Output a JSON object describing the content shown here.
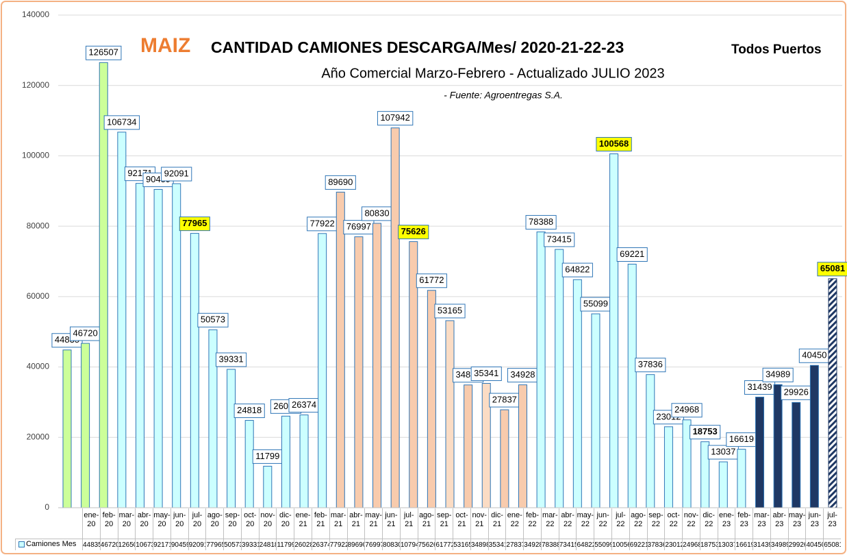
{
  "chart_data": {
    "type": "bar",
    "title": "MAIZ",
    "title_main": "CANTIDAD CAMIONES DESCARGA/Mes/ 2020-21-22-23",
    "title_suffix": "Todos Puertos",
    "subtitle": "Año Comercial Marzo-Febrero - Actualizado JULIO   2023",
    "source": "- Fuente: Agroentregas S.A.",
    "categories": [
      "ene-20",
      "feb-20",
      "mar-20",
      "abr-20",
      "may-20",
      "jun-20",
      "jul-20",
      "ago-20",
      "sep-20",
      "oct-20",
      "nov-20",
      "dic-20",
      "ene-21",
      "feb-21",
      "mar-21",
      "abr-21",
      "may-21",
      "jun-21",
      "jul-21",
      "ago-21",
      "sep-21",
      "oct-21",
      "nov-21",
      "dic-21",
      "ene-22",
      "feb-22",
      "mar-22",
      "abr-22",
      "may-22",
      "jun-22",
      "jul-22",
      "ago-22",
      "sep-22",
      "oct-22",
      "nov-22",
      "dic-22",
      "ene-23",
      "feb-23",
      "mar-23",
      "abr-23",
      "may-23",
      "jun-23",
      "jul-23"
    ],
    "series": [
      {
        "name": "Camiones Mes",
        "edgecolor": "#2e75b6",
        "values": [
          44835,
          46720,
          126507,
          106734,
          92171,
          90459,
          92091,
          77965,
          50573,
          39331,
          24818,
          11799,
          26028,
          26374,
          77922,
          89690,
          76997,
          80830,
          107942,
          75626,
          61772,
          53165,
          34898,
          35341,
          27837,
          34928,
          78388,
          73415,
          64822,
          55099,
          100568,
          69221,
          37836,
          23012,
          24968,
          18753,
          13037,
          16619,
          31439,
          34989,
          29926,
          40450,
          65081
        ],
        "colors": [
          "#ccff99",
          "#ccff99",
          "#ccff99",
          "#ccffff",
          "#ccffff",
          "#ccffff",
          "#ccffff",
          "#ccffff",
          "#ccffff",
          "#ccffff",
          "#ccffff",
          "#ccffff",
          "#ccffff",
          "#ccffff",
          "#ccffff",
          "#f8cbad",
          "#f8cbad",
          "#f8cbad",
          "#f8cbad",
          "#f8cbad",
          "#f8cbad",
          "#fbdcc4",
          "#f8cbad",
          "#fbdcc4",
          "#f8cbad",
          "#f8cbad",
          "#ccffff",
          "#ccffff",
          "#ccffff",
          "#ccffff",
          "#ccffff",
          "#ccffff",
          "#ccffff",
          "#ccffff",
          "#ccffff",
          "#ccffff",
          "#ccffff",
          "#ccffff",
          "#1f3864",
          "#1f3864",
          "#1f3864",
          "#1f3864",
          "#1f3864"
        ]
      }
    ],
    "hatched": [
      42
    ],
    "highlighted": [
      7,
      19,
      30,
      42
    ],
    "bold_labels": [
      35
    ],
    "ylim": [
      0,
      140000
    ],
    "yticks": [
      0,
      20000,
      40000,
      60000,
      80000,
      100000,
      120000,
      140000
    ],
    "grid": true
  }
}
